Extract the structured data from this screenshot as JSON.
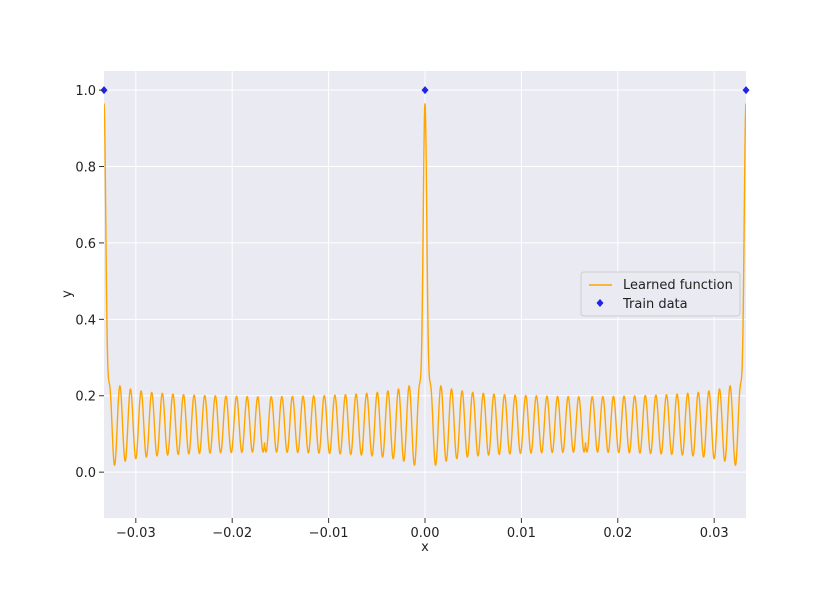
{
  "chart_data": {
    "type": "line",
    "xlabel": "x",
    "ylabel": "y",
    "xlim": [
      -0.0333,
      0.0333
    ],
    "ylim": [
      -0.12,
      1.05
    ],
    "grid": true,
    "legend_position": "center-right",
    "x_ticks": [
      -0.03,
      -0.02,
      -0.01,
      0.0,
      0.01,
      0.02,
      0.03
    ],
    "x_tick_labels": [
      "−0.03",
      "−0.02",
      "−0.01",
      "0.00",
      "0.01",
      "0.02",
      "0.03"
    ],
    "y_ticks": [
      0.0,
      0.2,
      0.4,
      0.6,
      0.8,
      1.0
    ],
    "y_tick_labels": [
      "0.0",
      "0.2",
      "0.4",
      "0.6",
      "0.8",
      "1.0"
    ],
    "colors": {
      "background": "#eaeaf2",
      "grid": "#ffffff",
      "line": "#ffa500",
      "points": "#1f24e6"
    },
    "series": [
      {
        "name": "Learned function",
        "kind": "line",
        "function": {
          "peaks_x": [
            -0.0333,
            0.0,
            0.0333
          ],
          "peak_y": 1.0,
          "baseline": 0.125,
          "oscillation_period": 0.0011,
          "first_minimum_y": -0.07,
          "first_side_maximum_y": 0.235
        }
      },
      {
        "name": "Train data",
        "kind": "scatter",
        "marker": "diamond",
        "x": [
          -0.0333,
          0.0,
          0.0333
        ],
        "y": [
          1.0,
          1.0,
          1.0
        ]
      }
    ]
  }
}
